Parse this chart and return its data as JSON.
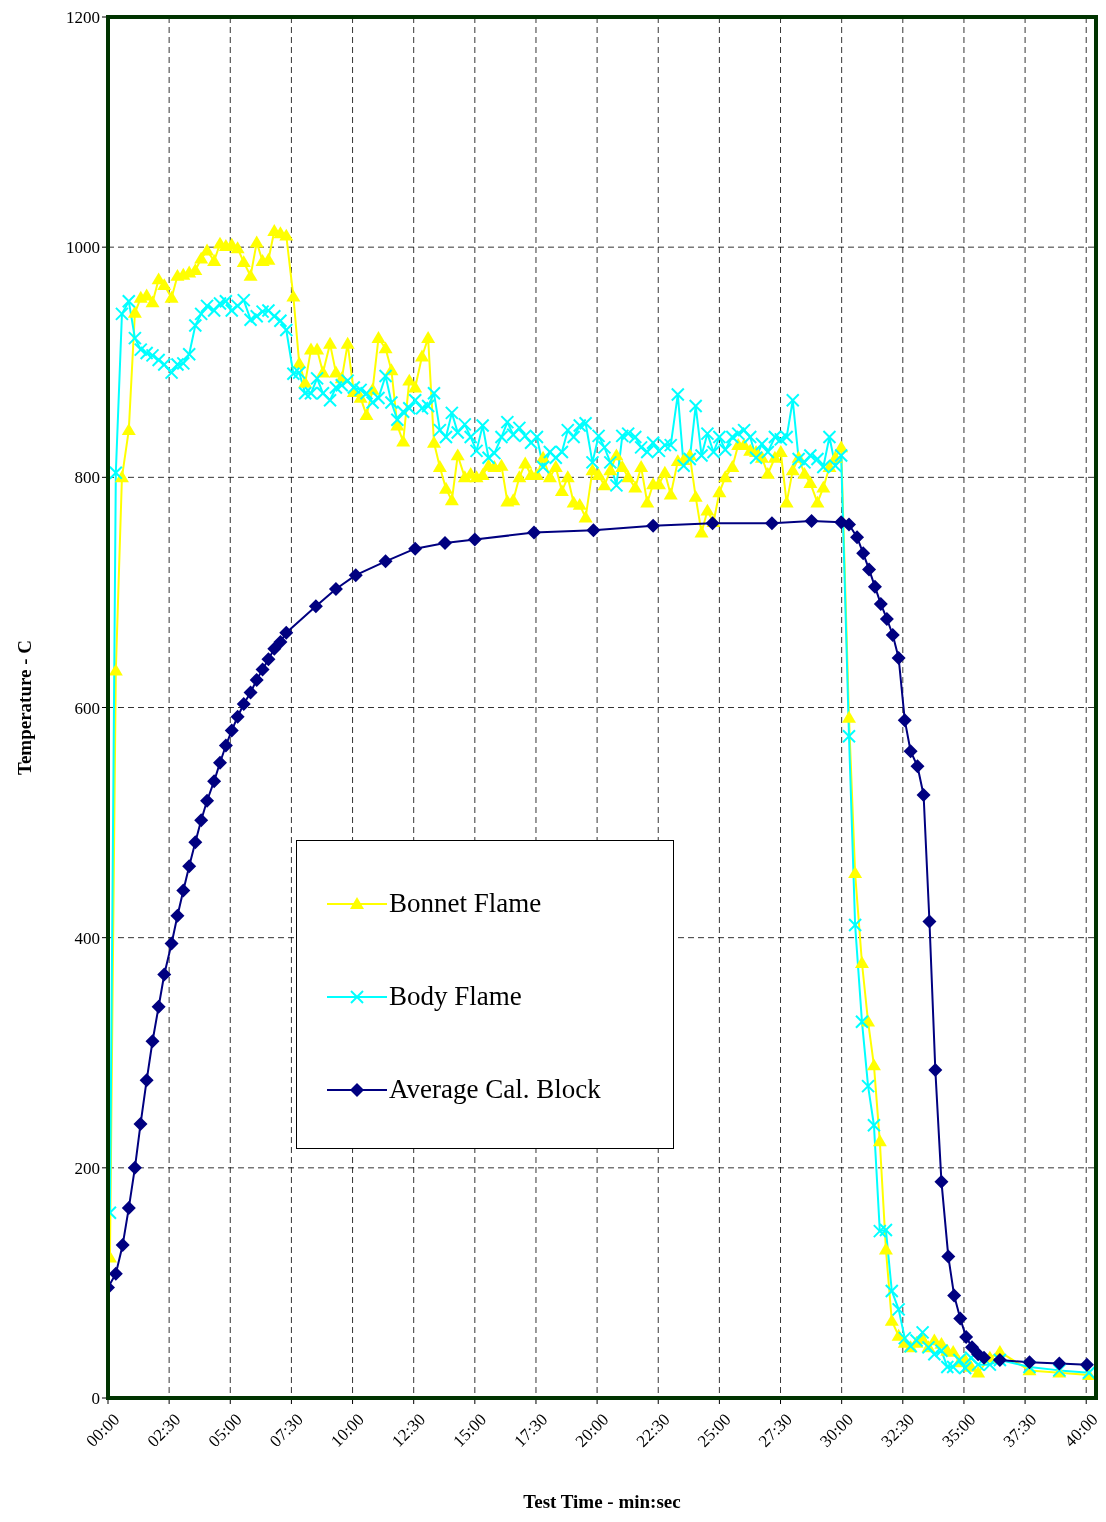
{
  "chart_data": {
    "type": "line",
    "xlabel": "Test Time - min:sec",
    "ylabel": "Temperature - C",
    "xlim": [
      0,
      40.4
    ],
    "ylim": [
      0,
      1200
    ],
    "xticks": [
      {
        "value": 0,
        "label": "00:00"
      },
      {
        "value": 2.5,
        "label": "02:30"
      },
      {
        "value": 5,
        "label": "05:00"
      },
      {
        "value": 7.5,
        "label": "07:30"
      },
      {
        "value": 10,
        "label": "10:00"
      },
      {
        "value": 12.5,
        "label": "12:30"
      },
      {
        "value": 15,
        "label": "15:00"
      },
      {
        "value": 17.5,
        "label": "17:30"
      },
      {
        "value": 20,
        "label": "20:00"
      },
      {
        "value": 22.5,
        "label": "22:30"
      },
      {
        "value": 25,
        "label": "25:00"
      },
      {
        "value": 27.5,
        "label": "27:30"
      },
      {
        "value": 30,
        "label": "30:00"
      },
      {
        "value": 32.5,
        "label": "32:30"
      },
      {
        "value": 35,
        "label": "35:00"
      },
      {
        "value": 37.5,
        "label": "37:30"
      },
      {
        "value": 40,
        "label": "40:00"
      }
    ],
    "yticks": [
      0,
      200,
      400,
      600,
      800,
      1000,
      1200
    ],
    "grid": true,
    "legend": "center left",
    "line_style": "solid",
    "series": [
      {
        "name": "Bonnet Flame",
        "color": "#ffff00",
        "marker": "triangle",
        "x": [
          0.08,
          0.32,
          0.57,
          0.85,
          1.1,
          1.34,
          1.58,
          1.82,
          2.07,
          2.3,
          2.6,
          2.84,
          3.08,
          3.32,
          3.57,
          3.81,
          4.05,
          4.34,
          4.58,
          4.82,
          5.06,
          5.3,
          5.55,
          5.83,
          6.08,
          6.32,
          6.56,
          6.8,
          7.05,
          7.29,
          7.58,
          7.82,
          8.06,
          8.3,
          8.55,
          8.79,
          9.08,
          9.32,
          9.56,
          9.8,
          10.05,
          10.33,
          10.57,
          10.82,
          11.06,
          11.35,
          11.59,
          11.83,
          12.07,
          12.32,
          12.56,
          12.84,
          13.09,
          13.33,
          13.57,
          13.82,
          14.06,
          14.3,
          14.59,
          14.83,
          15.07,
          15.32,
          15.56,
          15.8,
          16.09,
          16.33,
          16.57,
          16.82,
          17.06,
          17.3,
          17.54,
          17.79,
          18.07,
          18.31,
          18.56,
          18.8,
          19.04,
          19.29,
          19.53,
          19.81,
          20.06,
          20.3,
          20.54,
          20.79,
          21.03,
          21.27,
          21.56,
          21.8,
          22.05,
          22.29,
          22.53,
          22.77,
          23.01,
          23.3,
          23.54,
          23.79,
          24.03,
          24.27,
          24.51,
          24.76,
          25,
          25.24,
          25.53,
          25.77,
          26.01,
          26.26,
          26.5,
          26.74,
          26.98,
          27.27,
          27.51,
          27.75,
          28,
          28.24,
          28.48,
          28.72,
          29.01,
          29.25,
          29.5,
          29.74,
          29.98,
          30.3,
          30.55,
          30.83,
          31.08,
          31.32,
          31.56,
          31.81,
          32.05,
          32.33,
          32.58,
          32.82,
          33.06,
          33.31,
          33.55,
          33.79,
          34.08,
          34.32,
          34.56,
          34.81,
          35.05,
          35.29,
          35.58,
          36.06,
          36.47,
          37.68,
          38.9,
          40.11
        ],
        "values": [
          122,
          632,
          800,
          841,
          943,
          956,
          958,
          952,
          972,
          967,
          956,
          975,
          976,
          978,
          980,
          990,
          997,
          988,
          1003,
          1001,
          1002,
          999,
          987,
          975,
          1004,
          988,
          989,
          1014,
          1012,
          1010,
          957,
          899,
          882,
          911,
          911,
          891,
          916,
          891,
          886,
          916,
          874,
          869,
          854,
          876,
          921,
          912,
          893,
          845,
          831,
          884,
          878,
          905,
          921,
          830,
          809,
          790,
          780,
          819,
          800,
          803,
          800,
          802,
          810,
          809,
          810,
          779,
          780,
          800,
          812,
          802,
          802,
          817,
          800,
          809,
          788,
          800,
          778,
          776,
          765,
          806,
          802,
          793,
          806,
          819,
          809,
          800,
          791,
          809,
          778,
          794,
          794,
          804,
          785,
          814,
          815,
          819,
          783,
          752,
          771,
          761,
          787,
          800,
          809,
          828,
          828,
          823,
          822,
          817,
          803,
          817,
          822,
          778,
          806,
          817,
          803,
          795,
          778,
          791,
          809,
          817,
          826,
          591,
          456,
          378,
          327,
          289,
          223,
          129,
          67,
          54,
          48,
          44,
          48,
          51,
          44,
          50,
          47,
          41,
          40,
          31,
          33,
          27,
          22,
          35,
          40,
          24,
          22,
          20
        ]
      },
      {
        "name": "Body Flame",
        "color": "#00ffff",
        "marker": "cross",
        "x": [
          0.08,
          0.32,
          0.57,
          0.85,
          1.1,
          1.34,
          1.58,
          1.82,
          2.07,
          2.3,
          2.6,
          2.84,
          3.08,
          3.32,
          3.57,
          3.81,
          4.05,
          4.34,
          4.58,
          4.82,
          5.06,
          5.3,
          5.55,
          5.83,
          6.08,
          6.32,
          6.56,
          6.8,
          7.05,
          7.29,
          7.58,
          7.82,
          8.06,
          8.3,
          8.55,
          8.79,
          9.08,
          9.32,
          9.56,
          9.8,
          10.05,
          10.33,
          10.57,
          10.82,
          11.06,
          11.35,
          11.59,
          11.83,
          12.07,
          12.32,
          12.56,
          12.84,
          13.09,
          13.33,
          13.57,
          13.82,
          14.06,
          14.3,
          14.59,
          14.83,
          15.07,
          15.32,
          15.56,
          15.8,
          16.09,
          16.33,
          16.57,
          16.82,
          17.06,
          17.3,
          17.54,
          17.79,
          18.07,
          18.31,
          18.56,
          18.8,
          19.04,
          19.29,
          19.53,
          19.81,
          20.06,
          20.3,
          20.54,
          20.79,
          21.03,
          21.27,
          21.56,
          21.8,
          22.05,
          22.29,
          22.53,
          22.77,
          23.01,
          23.3,
          23.54,
          23.79,
          24.03,
          24.27,
          24.51,
          24.76,
          25,
          25.24,
          25.53,
          25.77,
          26.01,
          26.26,
          26.5,
          26.74,
          26.98,
          27.27,
          27.51,
          27.75,
          28,
          28.24,
          28.48,
          28.72,
          29.01,
          29.25,
          29.5,
          29.74,
          29.98,
          30.3,
          30.55,
          30.83,
          31.08,
          31.32,
          31.56,
          31.81,
          32.05,
          32.33,
          32.58,
          32.82,
          33.06,
          33.31,
          33.55,
          33.79,
          34.08,
          34.32,
          34.56,
          34.81,
          35.05,
          35.29,
          35.58,
          36.06,
          36.47,
          37.68,
          38.9,
          40.11
        ],
        "values": [
          161,
          804,
          942,
          953,
          921,
          911,
          908,
          906,
          902,
          898,
          891,
          898,
          899,
          907,
          932,
          942,
          949,
          945,
          951,
          953,
          945,
          949,
          954,
          937,
          940,
          944,
          945,
          940,
          936,
          928,
          890,
          891,
          873,
          873,
          886,
          873,
          867,
          878,
          880,
          884,
          878,
          876,
          873,
          865,
          869,
          888,
          865,
          850,
          857,
          860,
          867,
          860,
          862,
          873,
          841,
          835,
          856,
          839,
          846,
          835,
          823,
          845,
          817,
          821,
          835,
          848,
          837,
          843,
          836,
          830,
          835,
          809,
          822,
          817,
          822,
          841,
          835,
          845,
          847,
          813,
          836,
          826,
          813,
          793,
          836,
          838,
          835,
          826,
          822,
          830,
          823,
          828,
          828,
          872,
          810,
          816,
          862,
          819,
          838,
          822,
          835,
          824,
          835,
          838,
          841,
          835,
          817,
          829,
          822,
          835,
          833,
          835,
          867,
          816,
          813,
          819,
          816,
          809,
          835,
          810,
          819,
          575,
          411,
          327,
          271,
          237,
          145,
          146,
          93,
          77,
          52,
          45,
          50,
          57,
          44,
          38,
          41,
          27,
          27,
          33,
          26,
          35,
          29,
          29,
          33,
          27,
          24,
          22
        ]
      },
      {
        "name": "Average Cal. Block",
        "color": "#000080",
        "marker": "diamond",
        "x": [
          0,
          0.32,
          0.6,
          0.85,
          1.1,
          1.33,
          1.58,
          1.82,
          2.07,
          2.3,
          2.6,
          2.84,
          3.08,
          3.32,
          3.57,
          3.81,
          4.05,
          4.34,
          4.58,
          4.82,
          5.06,
          5.3,
          5.55,
          5.83,
          6.08,
          6.32,
          6.56,
          6.8,
          7.05,
          7.29,
          8.5,
          9.32,
          10.13,
          11.35,
          12.56,
          13.78,
          15,
          17.42,
          19.85,
          22.29,
          24.72,
          27.15,
          28.77,
          29.98,
          30.3,
          30.63,
          30.88,
          31.12,
          31.36,
          31.6,
          31.85,
          32.09,
          32.33,
          32.58,
          32.82,
          33.1,
          33.35,
          33.59,
          33.83,
          34.08,
          34.36,
          34.6,
          34.85,
          35.09,
          35.33,
          35.58,
          35.82,
          36.47,
          37.68,
          38.9,
          40.03
        ],
        "values": [
          96,
          108,
          133,
          165,
          200,
          238,
          276,
          310,
          340,
          368,
          395,
          419,
          441,
          462,
          483,
          502,
          519,
          536,
          552,
          567,
          580,
          592,
          603,
          613,
          624,
          633,
          642,
          651,
          657,
          665,
          688,
          703,
          715,
          727,
          738,
          743,
          746,
          752,
          754,
          758,
          760,
          760,
          762,
          761,
          759,
          748,
          734,
          720,
          705,
          690,
          677,
          663,
          643,
          589,
          562,
          549,
          524,
          414,
          285,
          188,
          123,
          89,
          69,
          53,
          44,
          38,
          35,
          33,
          31,
          30,
          29
        ]
      }
    ]
  }
}
